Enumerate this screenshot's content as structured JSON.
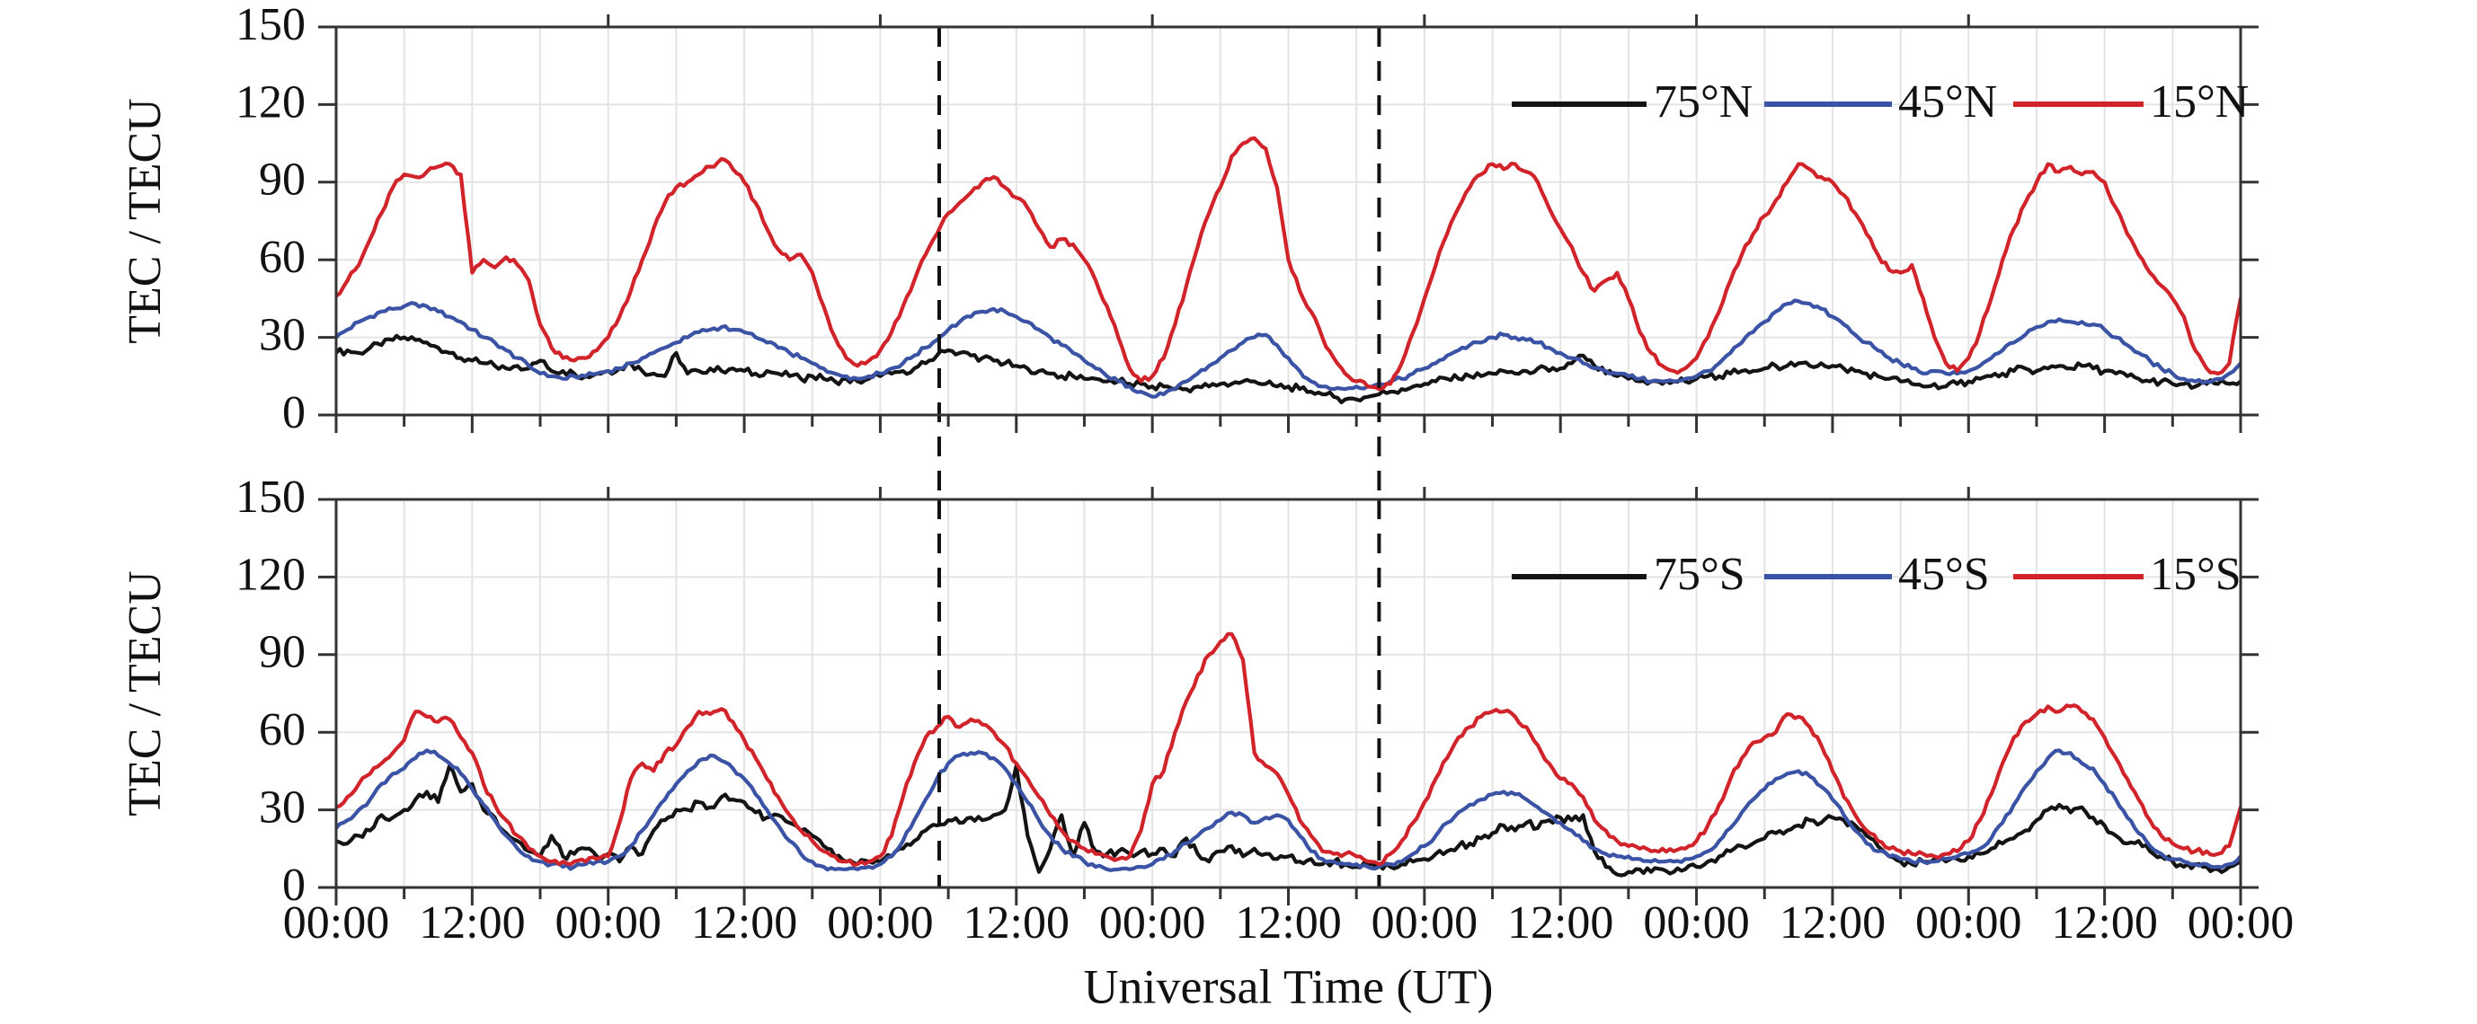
{
  "figure": {
    "xlabel": "Universal Time (UT)",
    "ylabel": "TEC / TECU",
    "background": "#ffffff",
    "axis_color": "#333333",
    "grid_color": "#e4e4e4",
    "dashed_line_color": "#111111",
    "xtick_labels": [
      "00:00",
      "12:00",
      "00:00",
      "12:00",
      "00:00",
      "12:00",
      "00:00",
      "12:00",
      "00:00",
      "12:00",
      "00:00",
      "12:00",
      "00:00",
      "12:00",
      "00:00"
    ],
    "xtick_hours": [
      0,
      12,
      24,
      36,
      48,
      60,
      72,
      84,
      96,
      108,
      120,
      132,
      144,
      156,
      168
    ],
    "x_minor_tick_hours": 6,
    "x_range_hours": [
      0,
      168
    ],
    "yticks": [
      0,
      30,
      60,
      90,
      120,
      150
    ],
    "ylim": [
      0,
      150
    ]
  },
  "chart_data": [
    {
      "type": "line",
      "panel": "northern-hemisphere",
      "title": "",
      "xlabel": "Universal Time (UT)",
      "ylabel": "TEC / TECU",
      "ylim": [
        0,
        150
      ],
      "yticks": [
        0,
        30,
        60,
        90,
        120,
        150
      ],
      "x_unit": "hours UT over 7 days",
      "x_step_hours": 1,
      "grid": true,
      "legend_position": "top-right",
      "dashed_vlines_hours": [
        53.2,
        92
      ],
      "series": [
        {
          "name": "75°N",
          "color": "#141414",
          "values": [
            24,
            25,
            24,
            26,
            27,
            29,
            30,
            29,
            28,
            26,
            24,
            22,
            21,
            20,
            19,
            18,
            19,
            18,
            21,
            17,
            17,
            16,
            15,
            16,
            17,
            18,
            20,
            17,
            16,
            15,
            24,
            16,
            17,
            18,
            17,
            18,
            17,
            16,
            17,
            16,
            15,
            14,
            15,
            14,
            13,
            14,
            13,
            14,
            15,
            16,
            17,
            18,
            20,
            23,
            25,
            24,
            23,
            22,
            21,
            20,
            19,
            18,
            17,
            16,
            15,
            15,
            14,
            14,
            13,
            13,
            12,
            12,
            11,
            11,
            10,
            10,
            11,
            11,
            12,
            12,
            13,
            13,
            12,
            11,
            11,
            10,
            9,
            8,
            7,
            6,
            6,
            7,
            8,
            9,
            10,
            11,
            12,
            13,
            14,
            14,
            15,
            15,
            16,
            17,
            16,
            17,
            18,
            17,
            18,
            20,
            23,
            19,
            16,
            15,
            14,
            13,
            13,
            12,
            13,
            13,
            14,
            15,
            15,
            16,
            17,
            17,
            18,
            19,
            19,
            20,
            19,
            20,
            19,
            18,
            17,
            16,
            15,
            14,
            13,
            12,
            11,
            12,
            11,
            12,
            13,
            14,
            15,
            16,
            17,
            18,
            17,
            18,
            19,
            18,
            19,
            18,
            17,
            16,
            15,
            14,
            13,
            13,
            12,
            12,
            11,
            12,
            12,
            12,
            13
          ]
        },
        {
          "name": "45°N",
          "color": "#3a53a4",
          "values": [
            30,
            33,
            36,
            38,
            40,
            41,
            42,
            43,
            42,
            40,
            38,
            36,
            33,
            30,
            28,
            25,
            22,
            19,
            16,
            15,
            14,
            15,
            15,
            16,
            17,
            18,
            20,
            22,
            24,
            26,
            28,
            30,
            32,
            33,
            34,
            33,
            32,
            30,
            28,
            26,
            24,
            22,
            20,
            18,
            16,
            15,
            14,
            15,
            16,
            18,
            20,
            23,
            26,
            29,
            33,
            36,
            38,
            40,
            41,
            40,
            38,
            36,
            33,
            30,
            27,
            24,
            21,
            18,
            15,
            13,
            11,
            9,
            7,
            8,
            10,
            13,
            16,
            19,
            22,
            25,
            28,
            30,
            31,
            27,
            22,
            17,
            13,
            11,
            10,
            10,
            11,
            11,
            12,
            13,
            14,
            16,
            18,
            20,
            23,
            25,
            27,
            28,
            30,
            31,
            30,
            29,
            28,
            26,
            24,
            22,
            20,
            18,
            17,
            16,
            15,
            14,
            13,
            13,
            13,
            14,
            15,
            17,
            20,
            24,
            28,
            32,
            36,
            40,
            43,
            44,
            43,
            41,
            38,
            35,
            31,
            28,
            25,
            22,
            20,
            18,
            16,
            17,
            16,
            16,
            17,
            19,
            22,
            25,
            28,
            31,
            34,
            36,
            37,
            36,
            36,
            35,
            33,
            30,
            27,
            24,
            21,
            18,
            16,
            14,
            13,
            13,
            14,
            16,
            20
          ]
        },
        {
          "name": "15°N",
          "color": "#d1232a",
          "values": [
            46,
            52,
            58,
            68,
            78,
            88,
            93,
            92,
            94,
            96,
            97,
            93,
            55,
            60,
            57,
            61,
            58,
            52,
            35,
            26,
            22,
            21,
            22,
            25,
            30,
            38,
            48,
            60,
            72,
            82,
            88,
            90,
            93,
            96,
            99,
            95,
            90,
            82,
            72,
            64,
            60,
            62,
            55,
            42,
            30,
            22,
            19,
            21,
            25,
            32,
            42,
            52,
            62,
            70,
            78,
            82,
            86,
            90,
            92,
            88,
            84,
            80,
            72,
            65,
            68,
            66,
            60,
            52,
            42,
            30,
            18,
            13,
            15,
            22,
            35,
            50,
            65,
            78,
            88,
            100,
            105,
            107,
            103,
            88,
            60,
            48,
            40,
            30,
            22,
            16,
            13,
            11,
            10,
            12,
            20,
            32,
            45,
            58,
            70,
            80,
            88,
            93,
            97,
            95,
            97,
            94,
            90,
            80,
            72,
            65,
            55,
            48,
            52,
            55,
            45,
            32,
            24,
            19,
            17,
            18,
            22,
            30,
            40,
            52,
            62,
            70,
            77,
            83,
            90,
            97,
            95,
            92,
            90,
            85,
            78,
            70,
            62,
            56,
            55,
            58,
            45,
            30,
            20,
            17,
            22,
            32,
            45,
            60,
            72,
            82,
            90,
            97,
            94,
            96,
            93,
            94,
            90,
            80,
            70,
            62,
            55,
            50,
            45,
            38,
            25,
            18,
            16,
            20,
            45
          ]
        }
      ]
    },
    {
      "type": "line",
      "panel": "southern-hemisphere",
      "title": "",
      "xlabel": "Universal Time (UT)",
      "ylabel": "TEC / TECU",
      "ylim": [
        0,
        150
      ],
      "yticks": [
        0,
        30,
        60,
        90,
        120,
        150
      ],
      "x_unit": "hours UT over 7 days",
      "x_step_hours": 1,
      "grid": true,
      "legend_position": "top-right",
      "dashed_vlines_hours": [
        53.2,
        92
      ],
      "series": [
        {
          "name": "75°S",
          "color": "#141414",
          "values": [
            18,
            17,
            20,
            22,
            28,
            27,
            30,
            34,
            37,
            33,
            47,
            37,
            40,
            30,
            27,
            21,
            18,
            14,
            12,
            20,
            12,
            13,
            15,
            12,
            13,
            10,
            16,
            13,
            22,
            26,
            30,
            30,
            33,
            31,
            35,
            34,
            33,
            29,
            27,
            28,
            25,
            22,
            20,
            16,
            12,
            10,
            9,
            10,
            10,
            12,
            15,
            18,
            22,
            24,
            26,
            25,
            27,
            26,
            28,
            30,
            47,
            20,
            6,
            15,
            28,
            12,
            25,
            14,
            13,
            14,
            13,
            14,
            13,
            15,
            12,
            19,
            13,
            10,
            14,
            16,
            12,
            15,
            13,
            11,
            12,
            10,
            11,
            9,
            10,
            9,
            8,
            9,
            9,
            8,
            9,
            10,
            11,
            13,
            14,
            16,
            17,
            19,
            21,
            24,
            22,
            25,
            23,
            26,
            27,
            26,
            28,
            14,
            8,
            5,
            6,
            7,
            6,
            7,
            6,
            7,
            8,
            10,
            12,
            14,
            16,
            17,
            19,
            21,
            22,
            24,
            26,
            25,
            27,
            26,
            24,
            20,
            16,
            12,
            10,
            9,
            10,
            11,
            10,
            11,
            12,
            13,
            15,
            17,
            19,
            22,
            26,
            30,
            32,
            29,
            31,
            27,
            24,
            20,
            17,
            18,
            14,
            12,
            10,
            8,
            9,
            8,
            7,
            8,
            10
          ]
        },
        {
          "name": "45°S",
          "color": "#3a53a4",
          "values": [
            23,
            26,
            30,
            34,
            40,
            44,
            46,
            50,
            53,
            51,
            48,
            44,
            38,
            32,
            26,
            20,
            15,
            12,
            10,
            9,
            8,
            8,
            9,
            10,
            10,
            12,
            16,
            22,
            28,
            34,
            40,
            45,
            49,
            51,
            49,
            46,
            42,
            36,
            30,
            24,
            18,
            13,
            10,
            8,
            7,
            7,
            7,
            8,
            9,
            12,
            18,
            26,
            34,
            42,
            48,
            51,
            52,
            52,
            50,
            46,
            40,
            33,
            26,
            20,
            15,
            12,
            10,
            8,
            7,
            7,
            7,
            8,
            9,
            11,
            14,
            17,
            20,
            23,
            26,
            29,
            28,
            25,
            27,
            28,
            26,
            20,
            14,
            11,
            10,
            9,
            9,
            8,
            8,
            9,
            10,
            13,
            16,
            20,
            25,
            29,
            32,
            34,
            36,
            37,
            36,
            34,
            31,
            28,
            25,
            22,
            18,
            15,
            13,
            12,
            12,
            11,
            10,
            10,
            10,
            11,
            12,
            14,
            18,
            23,
            29,
            34,
            38,
            42,
            44,
            45,
            43,
            39,
            34,
            28,
            22,
            17,
            14,
            12,
            11,
            10,
            10,
            10,
            11,
            12,
            13,
            15,
            19,
            25,
            32,
            39,
            45,
            50,
            53,
            52,
            48,
            46,
            40,
            34,
            27,
            21,
            16,
            13,
            11,
            10,
            9,
            9,
            8,
            9,
            12
          ]
        },
        {
          "name": "15°S",
          "color": "#d1232a",
          "values": [
            31,
            35,
            40,
            44,
            48,
            52,
            57,
            68,
            66,
            64,
            65,
            58,
            52,
            40,
            32,
            26,
            20,
            15,
            12,
            10,
            10,
            10,
            10,
            11,
            12,
            25,
            42,
            48,
            45,
            52,
            55,
            62,
            68,
            67,
            69,
            64,
            57,
            50,
            42,
            35,
            28,
            22,
            18,
            14,
            12,
            10,
            9,
            10,
            12,
            20,
            35,
            48,
            58,
            62,
            66,
            62,
            65,
            63,
            60,
            55,
            48,
            42,
            35,
            28,
            22,
            18,
            15,
            13,
            12,
            11,
            12,
            22,
            40,
            45,
            60,
            72,
            82,
            90,
            95,
            98,
            88,
            52,
            47,
            44,
            36,
            26,
            20,
            14,
            13,
            13,
            12,
            10,
            9,
            13,
            18,
            25,
            33,
            42,
            50,
            58,
            62,
            66,
            68,
            68,
            66,
            62,
            55,
            48,
            42,
            40,
            35,
            26,
            22,
            18,
            16,
            15,
            14,
            15,
            14,
            15,
            18,
            24,
            32,
            42,
            50,
            56,
            58,
            60,
            67,
            66,
            62,
            55,
            45,
            35,
            28,
            22,
            18,
            15,
            14,
            13,
            13,
            12,
            13,
            14,
            18,
            26,
            36,
            48,
            58,
            64,
            67,
            70,
            68,
            70,
            68,
            65,
            58,
            50,
            42,
            34,
            26,
            20,
            17,
            15,
            14,
            14,
            13,
            16,
            31
          ]
        }
      ]
    }
  ]
}
